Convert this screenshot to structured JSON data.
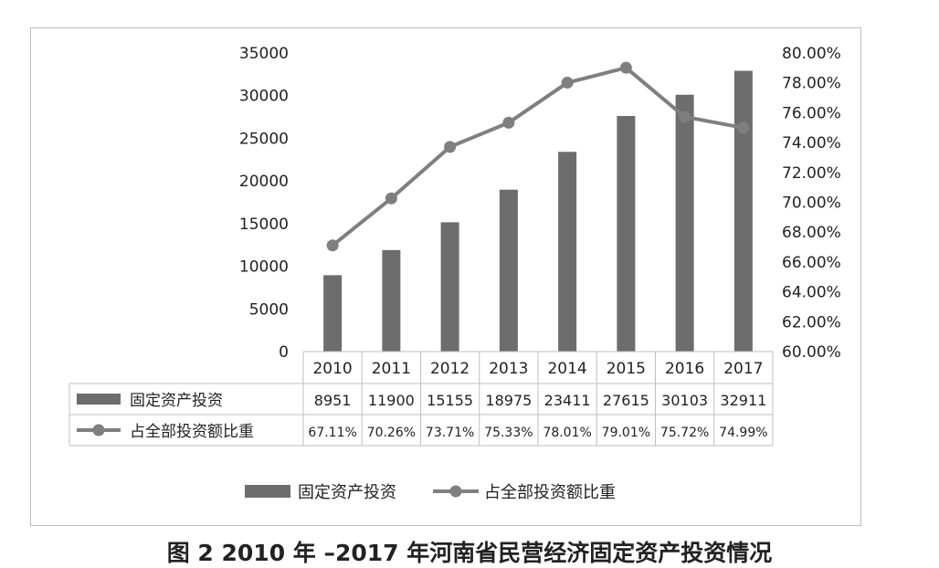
{
  "caption": "图 2   2010 年 –2017 年河南省民营经济固定资产投资情况",
  "chart_data": {
    "type": "bar",
    "categories": [
      "2010",
      "2011",
      "2012",
      "2013",
      "2014",
      "2015",
      "2016",
      "2017"
    ],
    "series": [
      {
        "name": "固定资产投资",
        "type": "bar",
        "axis": "left",
        "values": [
          8951,
          11900,
          15155,
          18975,
          23411,
          27615,
          30103,
          32911
        ],
        "labels": [
          "8951",
          "11900",
          "15155",
          "18975",
          "23411",
          "27615",
          "30103",
          "32911"
        ]
      },
      {
        "name": "占全部投资额比重",
        "type": "line",
        "axis": "right",
        "values": [
          67.11,
          70.26,
          73.71,
          75.33,
          78.01,
          79.01,
          75.72,
          74.99
        ],
        "labels": [
          "67.11%",
          "70.26%",
          "73.71%",
          "75.33%",
          "78.01%",
          "79.01%",
          "75.72%",
          "74.99%"
        ]
      }
    ],
    "y_left": {
      "ylim": [
        0,
        35000
      ],
      "ticks": [
        "0",
        "5000",
        "10000",
        "15000",
        "20000",
        "25000",
        "30000",
        "35000"
      ]
    },
    "y_right": {
      "ylim": [
        60,
        80
      ],
      "ticks": [
        "60.00%",
        "62.00%",
        "64.00%",
        "66.00%",
        "68.00%",
        "70.00%",
        "72.00%",
        "74.00%",
        "76.00%",
        "78.00%",
        "80.00%"
      ]
    },
    "grid": false,
    "data_table": true,
    "legend_position": "bottom",
    "colors": {
      "bar": "#6d6d6d",
      "line": "#7f7f7f",
      "text": "#222222",
      "table_border": "#bfbfbf"
    }
  }
}
